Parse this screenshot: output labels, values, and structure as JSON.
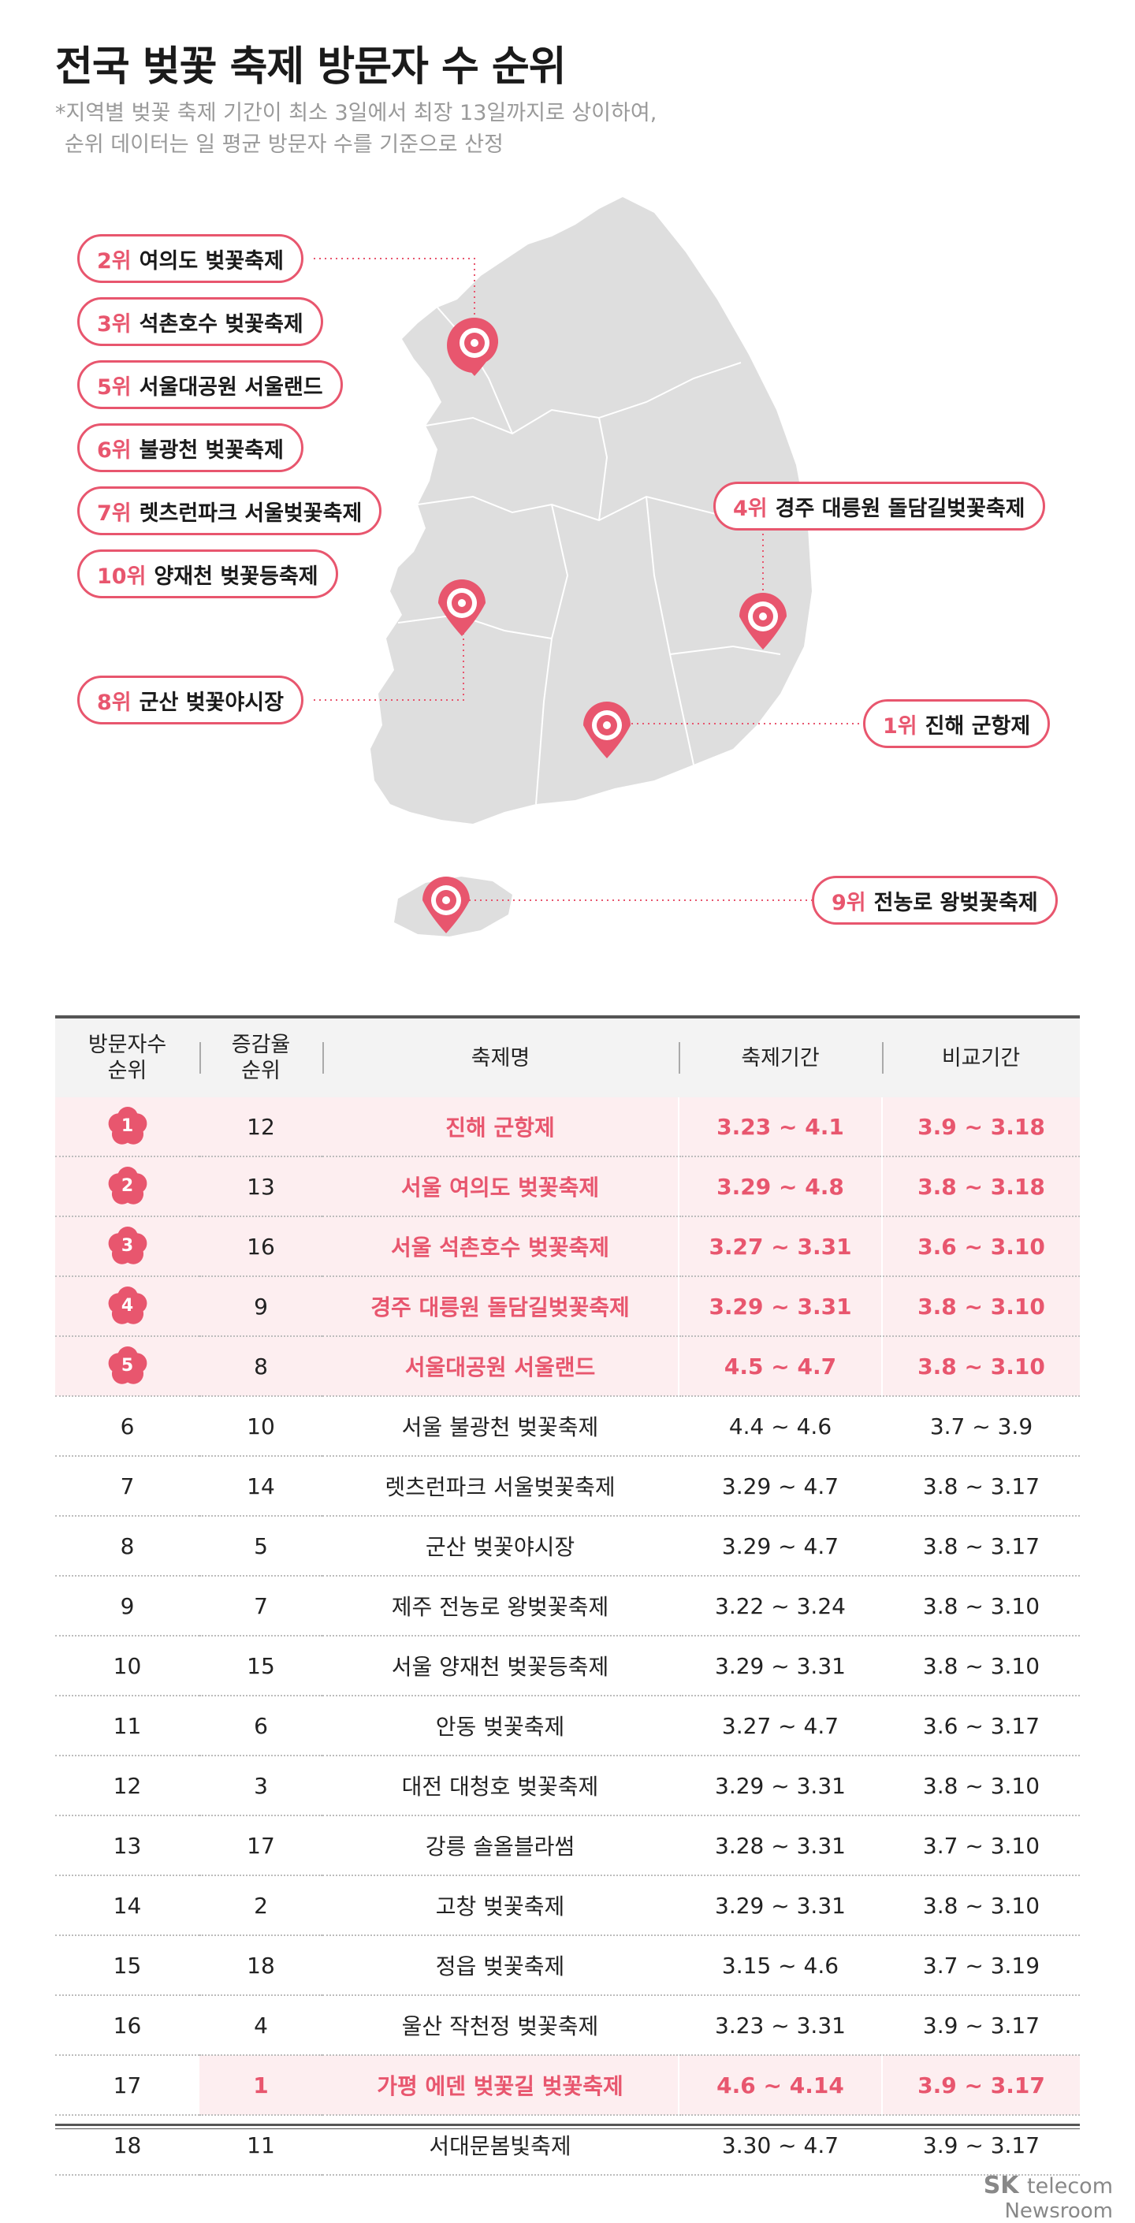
{
  "title": "전국 벚꽃 축제 방문자 수 순위",
  "note": [
    "*지역별 벚꽃 축제 기간이 최소 3일에서 최장 13일까지로 상이하여,",
    "순위 데이터는 일 평균 방문자 수를 기준으로 산정"
  ],
  "colors": {
    "accent": "#e8566e",
    "map": "#dedede",
    "highlight_bg": "#fdeef0"
  },
  "map_labels": [
    {
      "rank": "2위",
      "name": "여의도 벚꽃축제"
    },
    {
      "rank": "3위",
      "name": "석촌호수 벚꽃축제"
    },
    {
      "rank": "5위",
      "name": "서울대공원 서울랜드"
    },
    {
      "rank": "6위",
      "name": "불광천 벚꽃축제"
    },
    {
      "rank": "7위",
      "name": "렛츠런파크 서울벚꽃축제"
    },
    {
      "rank": "10위",
      "name": "양재천 벚꽃등축제"
    },
    {
      "rank": "8위",
      "name": "군산 벚꽃야시장"
    },
    {
      "rank": "4위",
      "name": "경주 대릉원 돌담길벚꽃축제"
    },
    {
      "rank": "1위",
      "name": "진해 군항제"
    },
    {
      "rank": "9위",
      "name": "전농로 왕벚꽃축제"
    }
  ],
  "table": {
    "headers": [
      "방문자수\n순위",
      "증감율\n순위",
      "축제명",
      "축제기간",
      "비교기간"
    ],
    "rows": [
      {
        "rank": "1",
        "change": "12",
        "name": "진해 군항제",
        "period": "3.23 ~ 4.1",
        "compare": "3.9 ~ 3.18",
        "top": true
      },
      {
        "rank": "2",
        "change": "13",
        "name": "서울 여의도 벚꽃축제",
        "period": "3.29 ~ 4.8",
        "compare": "3.8 ~ 3.18",
        "top": true
      },
      {
        "rank": "3",
        "change": "16",
        "name": "서울 석촌호수 벚꽃축제",
        "period": "3.27 ~ 3.31",
        "compare": "3.6 ~ 3.10",
        "top": true
      },
      {
        "rank": "4",
        "change": "9",
        "name": "경주 대릉원 돌담길벚꽃축제",
        "period": "3.29 ~ 3.31",
        "compare": "3.8 ~ 3.10",
        "top": true
      },
      {
        "rank": "5",
        "change": "8",
        "name": "서울대공원 서울랜드",
        "period": "4.5 ~ 4.7",
        "compare": "3.8 ~ 3.10",
        "top": true
      },
      {
        "rank": "6",
        "change": "10",
        "name": "서울 불광천 벚꽃축제",
        "period": "4.4 ~ 4.6",
        "compare": "3.7 ~ 3.9"
      },
      {
        "rank": "7",
        "change": "14",
        "name": "렛츠런파크 서울벚꽃축제",
        "period": "3.29 ~ 4.7",
        "compare": "3.8 ~ 3.17"
      },
      {
        "rank": "8",
        "change": "5",
        "name": "군산 벚꽃야시장",
        "period": "3.29 ~ 4.7",
        "compare": "3.8 ~ 3.17"
      },
      {
        "rank": "9",
        "change": "7",
        "name": "제주 전농로 왕벚꽃축제",
        "period": "3.22 ~ 3.24",
        "compare": "3.8 ~ 3.10"
      },
      {
        "rank": "10",
        "change": "15",
        "name": "서울 양재천 벚꽃등축제",
        "period": "3.29 ~ 3.31",
        "compare": "3.8 ~ 3.10"
      },
      {
        "rank": "11",
        "change": "6",
        "name": "안동 벚꽃축제",
        "period": "3.27 ~ 4.7",
        "compare": "3.6 ~ 3.17"
      },
      {
        "rank": "12",
        "change": "3",
        "name": "대전 대청호 벚꽃축제",
        "period": "3.29 ~ 3.31",
        "compare": "3.8 ~ 3.10"
      },
      {
        "rank": "13",
        "change": "17",
        "name": "강릉 솔올블라썸",
        "period": "3.28 ~ 3.31",
        "compare": "3.7 ~ 3.10"
      },
      {
        "rank": "14",
        "change": "2",
        "name": "고창 벚꽃축제",
        "period": "3.29 ~ 3.31",
        "compare": "3.8 ~ 3.10"
      },
      {
        "rank": "15",
        "change": "18",
        "name": "정읍 벚꽃축제",
        "period": "3.15 ~ 4.6",
        "compare": "3.7 ~ 3.19"
      },
      {
        "rank": "16",
        "change": "4",
        "name": "울산 작천정 벚꽃축제",
        "period": "3.23 ~ 3.31",
        "compare": "3.9 ~ 3.17"
      },
      {
        "rank": "17",
        "change": "1",
        "name": "가평 에덴 벚꽃길 벚꽃축제",
        "period": "4.6 ~ 4.14",
        "compare": "3.9 ~ 3.17",
        "change_highlight": true
      },
      {
        "rank": "18",
        "change": "11",
        "name": "서대문봄빛축제",
        "period": "3.30 ~ 4.7",
        "compare": "3.9 ~ 3.17"
      }
    ]
  },
  "logo": {
    "brand": "SK",
    "brand2": "telecom",
    "sub": "Newsroom"
  }
}
